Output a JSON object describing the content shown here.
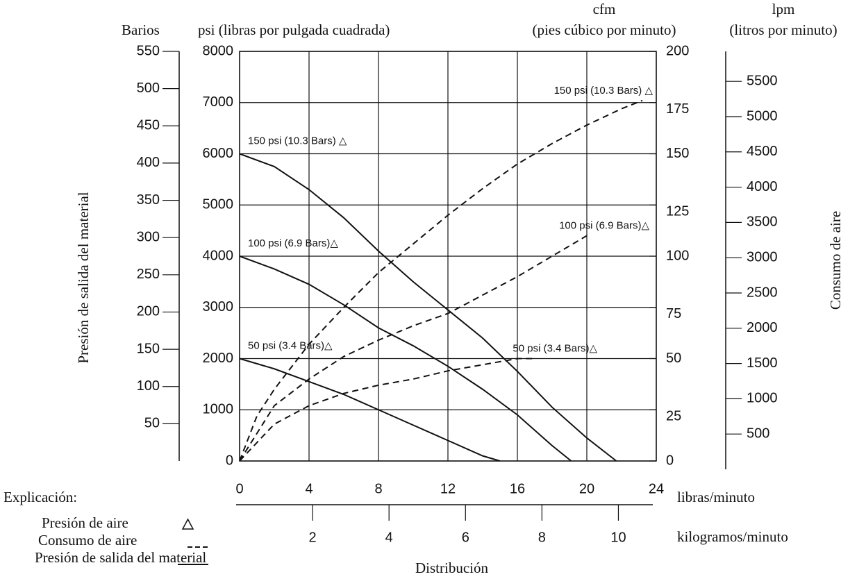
{
  "chart_data": {
    "type": "line",
    "y3label": "Barios",
    "ylabel": "psi (libras por pulgada cuadrada)",
    "y2label": [
      "cfm",
      "(pies cúbico por minuto)"
    ],
    "y4label": [
      "lpm",
      "(litros por minuto)"
    ],
    "ylabel_side": "Presión de salida del material",
    "y2label_side": "Consumo de aire",
    "xlabel": "libras/minuto",
    "x2label": "kilogramos/minuto",
    "x3label": "Distribución",
    "xlim": [
      0,
      24
    ],
    "xticks": [
      0,
      4,
      8,
      12,
      16,
      20,
      24
    ],
    "x2lim": [
      0,
      10.9
    ],
    "x2ticks": [
      2,
      4,
      6,
      8,
      10
    ],
    "ylim": [
      0,
      8000
    ],
    "yticks": [
      0,
      1000,
      2000,
      3000,
      4000,
      5000,
      6000,
      7000,
      8000
    ],
    "y2lim": [
      0,
      200
    ],
    "y2ticks": [
      0,
      25,
      50,
      75,
      100,
      125,
      150,
      175,
      200
    ],
    "y3lim": [
      0,
      550
    ],
    "y3ticks": [
      50,
      100,
      150,
      200,
      250,
      300,
      350,
      400,
      450,
      500,
      550
    ],
    "y4lim": [
      0,
      5925
    ],
    "y4ticks": [
      500,
      1000,
      1500,
      2000,
      2500,
      3000,
      3500,
      4000,
      4500,
      5000,
      5500
    ],
    "grid": true,
    "series": [
      {
        "name": "150 psi (10.3 Bars) △",
        "style": "solid",
        "color": "#111",
        "x": [
          0,
          2,
          4,
          6,
          8,
          10,
          12,
          14,
          16,
          18,
          20,
          21.7
        ],
        "values": [
          6000,
          5750,
          5300,
          4750,
          4100,
          3500,
          2950,
          2400,
          1750,
          1050,
          450,
          0
        ]
      },
      {
        "name": "100 psi (6.9 Bars)△",
        "style": "solid",
        "color": "#111",
        "x": [
          0,
          2,
          4,
          6,
          8,
          10,
          12,
          14,
          16,
          18,
          19.1
        ],
        "values": [
          4000,
          3750,
          3450,
          3050,
          2600,
          2250,
          1850,
          1400,
          900,
          300,
          0
        ]
      },
      {
        "name": "50 psi (3.4 Bars)△",
        "style": "solid",
        "color": "#111",
        "x": [
          0,
          2,
          4,
          6,
          8,
          10,
          12,
          14,
          15
        ],
        "values": [
          2000,
          1800,
          1550,
          1300,
          1000,
          700,
          400,
          100,
          0
        ]
      },
      {
        "name": "150 psi (10.3 Bars) △",
        "style": "dashed",
        "axis": "y2",
        "color": "#111",
        "x": [
          0,
          1,
          2,
          4,
          6,
          8,
          10,
          12,
          14,
          16,
          18,
          20,
          22,
          23.2
        ],
        "values": [
          0,
          22,
          35,
          57,
          75,
          92,
          106,
          120,
          133,
          145,
          155,
          164,
          172,
          176
        ]
      },
      {
        "name": "100 psi (6.9 Bars)△",
        "style": "dashed",
        "axis": "y2",
        "color": "#111",
        "x": [
          0,
          2,
          4,
          6,
          8,
          10,
          12,
          14,
          16,
          18,
          20
        ],
        "values": [
          0,
          27,
          40,
          51,
          59,
          66,
          72,
          81,
          90,
          100,
          110
        ]
      },
      {
        "name": "50 psi (3.4 Bars)△",
        "style": "dashed",
        "axis": "y2",
        "color": "#111",
        "x": [
          0,
          2,
          4,
          6,
          8,
          10,
          12,
          14,
          16,
          17
        ],
        "values": [
          0,
          18,
          27,
          33,
          37,
          40,
          44,
          47,
          50,
          50
        ]
      }
    ],
    "legend": {
      "title": "Explicación:",
      "items": [
        {
          "label": "Presión de aire",
          "style": "triangle"
        },
        {
          "label": "Consumo de aire",
          "style": "dashed"
        },
        {
          "label": "Presión de salida del material",
          "style": "solid"
        }
      ]
    }
  }
}
